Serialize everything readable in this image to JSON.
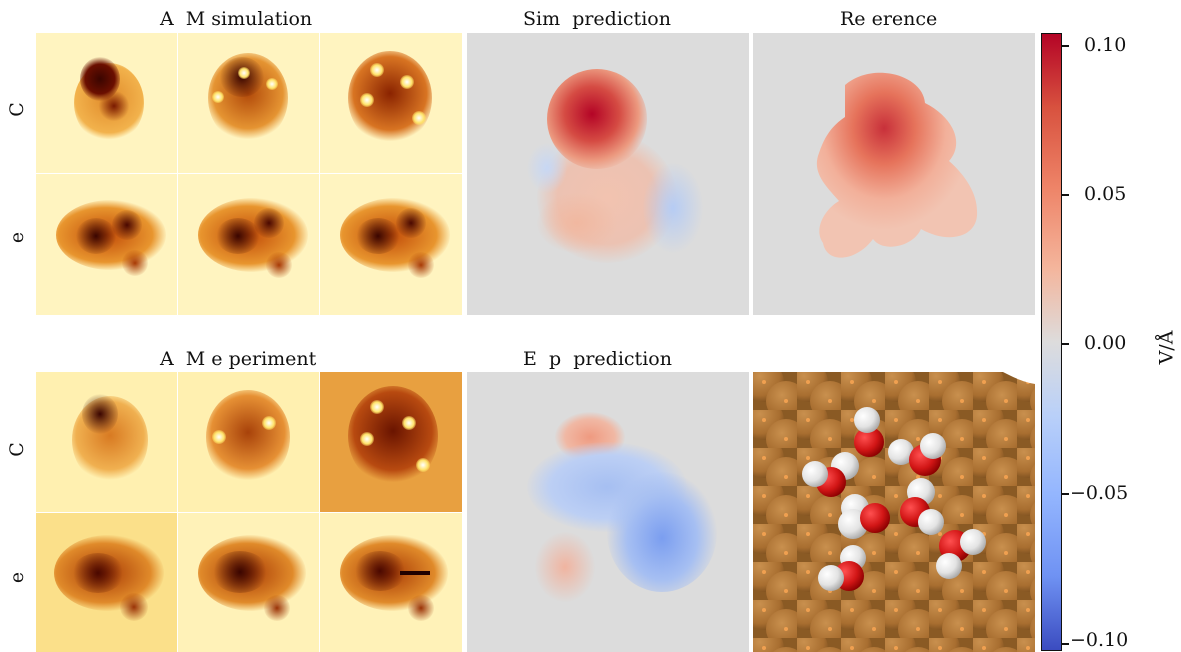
{
  "titles": {
    "afm_simulation": "A  M simulation",
    "sim_prediction": "Sim  prediction",
    "reference": "Re erence",
    "afm_experiment": "A  M e periment",
    "exp_prediction": "E  p  prediction"
  },
  "row_labels": {
    "sim_top": "C",
    "sim_bottom": "e",
    "exp_top": "C",
    "exp_bottom": "e"
  },
  "colorbar": {
    "label": "V/Å",
    "ticks": [
      "0.10",
      "0.05",
      "0.00",
      "−0.05",
      "−0.10"
    ],
    "colormap": [
      "#b40426",
      "#e57058",
      "#dddcdc",
      "#6f92f3",
      "#3b4cc0"
    ]
  },
  "colors": {
    "afm_bg": "#fff3b8",
    "afm_dark": "#5c0b00",
    "afm_mid": "#c8560a",
    "gray_bg": "#dcdcdc",
    "copper": "#b87a3a",
    "oxygen": "#d21616",
    "hydrogen": "#e6e6e6"
  }
}
